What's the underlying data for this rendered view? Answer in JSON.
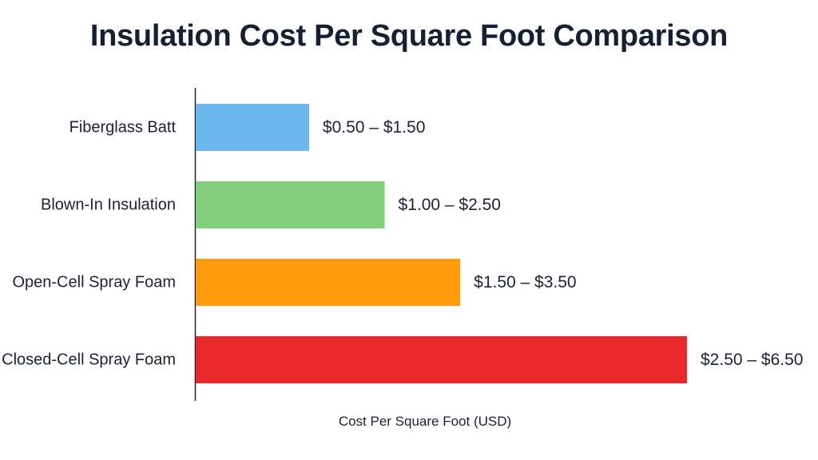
{
  "chart_data": {
    "type": "bar",
    "orientation": "horizontal",
    "title": "Insulation Cost Per Square Foot Comparison",
    "xlabel": "Cost Per Square Foot (USD)",
    "ylabel": "",
    "grid": false,
    "xlim": [
      0,
      6.5
    ],
    "categories": [
      "Fiberglass Batt",
      "Blown-In Insulation",
      "Open-Cell Spray Foam",
      "Closed-Cell Spray Foam"
    ],
    "values": [
      1.5,
      2.5,
      3.5,
      6.5
    ],
    "value_labels": [
      "$0.50 – $1.50",
      "$1.00 – $2.50",
      "$1.50 – $3.50",
      "$2.50 – $6.50"
    ],
    "colors": [
      "#6cb8ee",
      "#84cf7d",
      "#ff9a0a",
      "#e8282a"
    ]
  }
}
